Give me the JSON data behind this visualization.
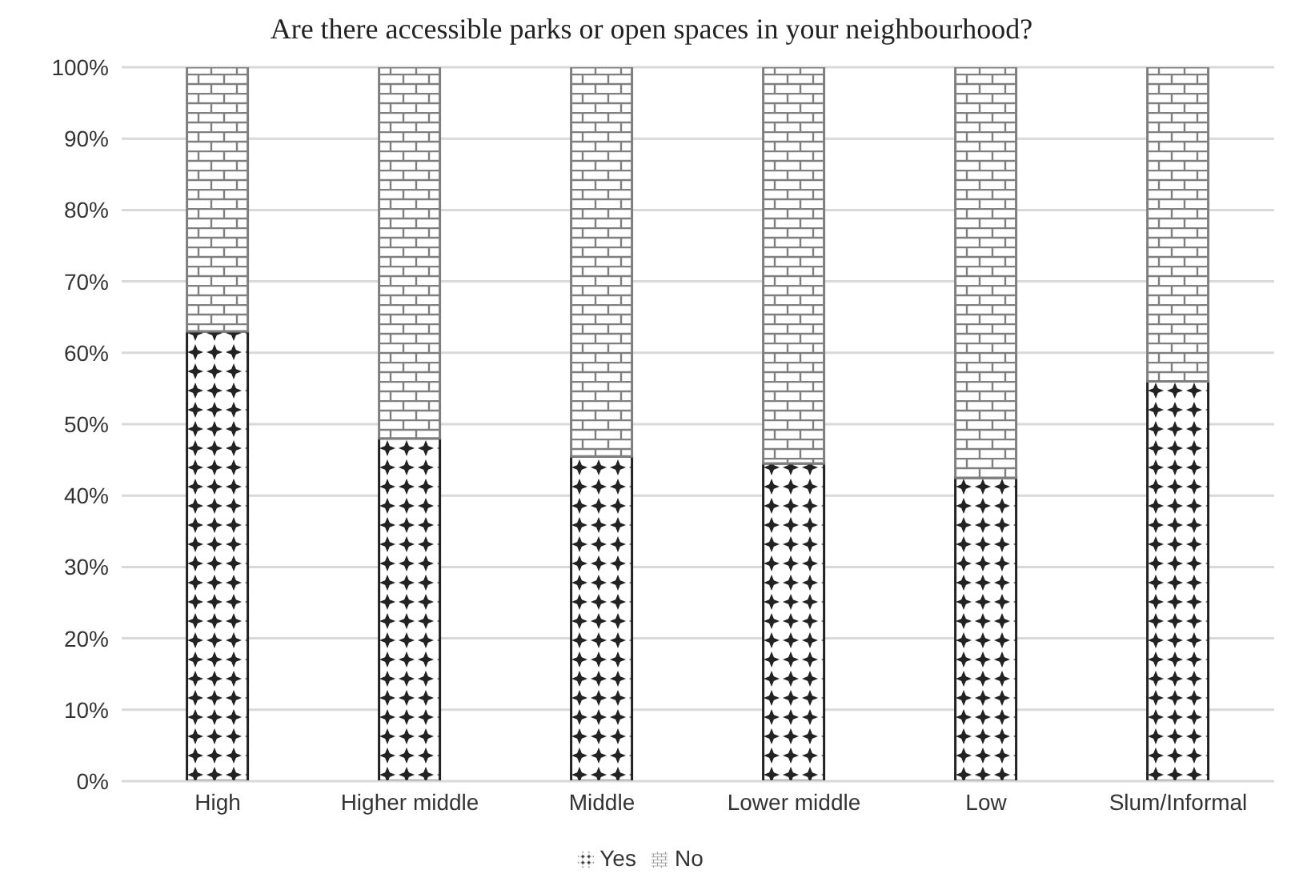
{
  "chart_data": {
    "type": "bar",
    "title": "Are there accessible parks or open spaces in your neighbourhood?",
    "categories": [
      "High",
      "Higher middle",
      "Middle",
      "Lower middle",
      "Low",
      "Slum/Informal"
    ],
    "stacked": true,
    "series": [
      {
        "name": "Yes",
        "color": "#222222",
        "values": [
          63,
          48,
          45.5,
          44.5,
          42.5,
          56
        ]
      },
      {
        "name": "No",
        "color": "#7f7f7f",
        "values": [
          37,
          52,
          54.5,
          55.5,
          57.5,
          44
        ]
      }
    ],
    "ylim": [
      0,
      100
    ],
    "yticks": [
      {
        "value": 0,
        "label": "0%"
      },
      {
        "value": 10,
        "label": "10%"
      },
      {
        "value": 20,
        "label": "20%"
      },
      {
        "value": 30,
        "label": "30%"
      },
      {
        "value": 40,
        "label": "40%"
      },
      {
        "value": 50,
        "label": "50%"
      },
      {
        "value": 60,
        "label": "60%"
      },
      {
        "value": 70,
        "label": "70%"
      },
      {
        "value": 80,
        "label": "80%"
      },
      {
        "value": 90,
        "label": "90%"
      },
      {
        "value": 100,
        "label": "100%"
      }
    ],
    "grid": "y",
    "legend": "bottom"
  }
}
